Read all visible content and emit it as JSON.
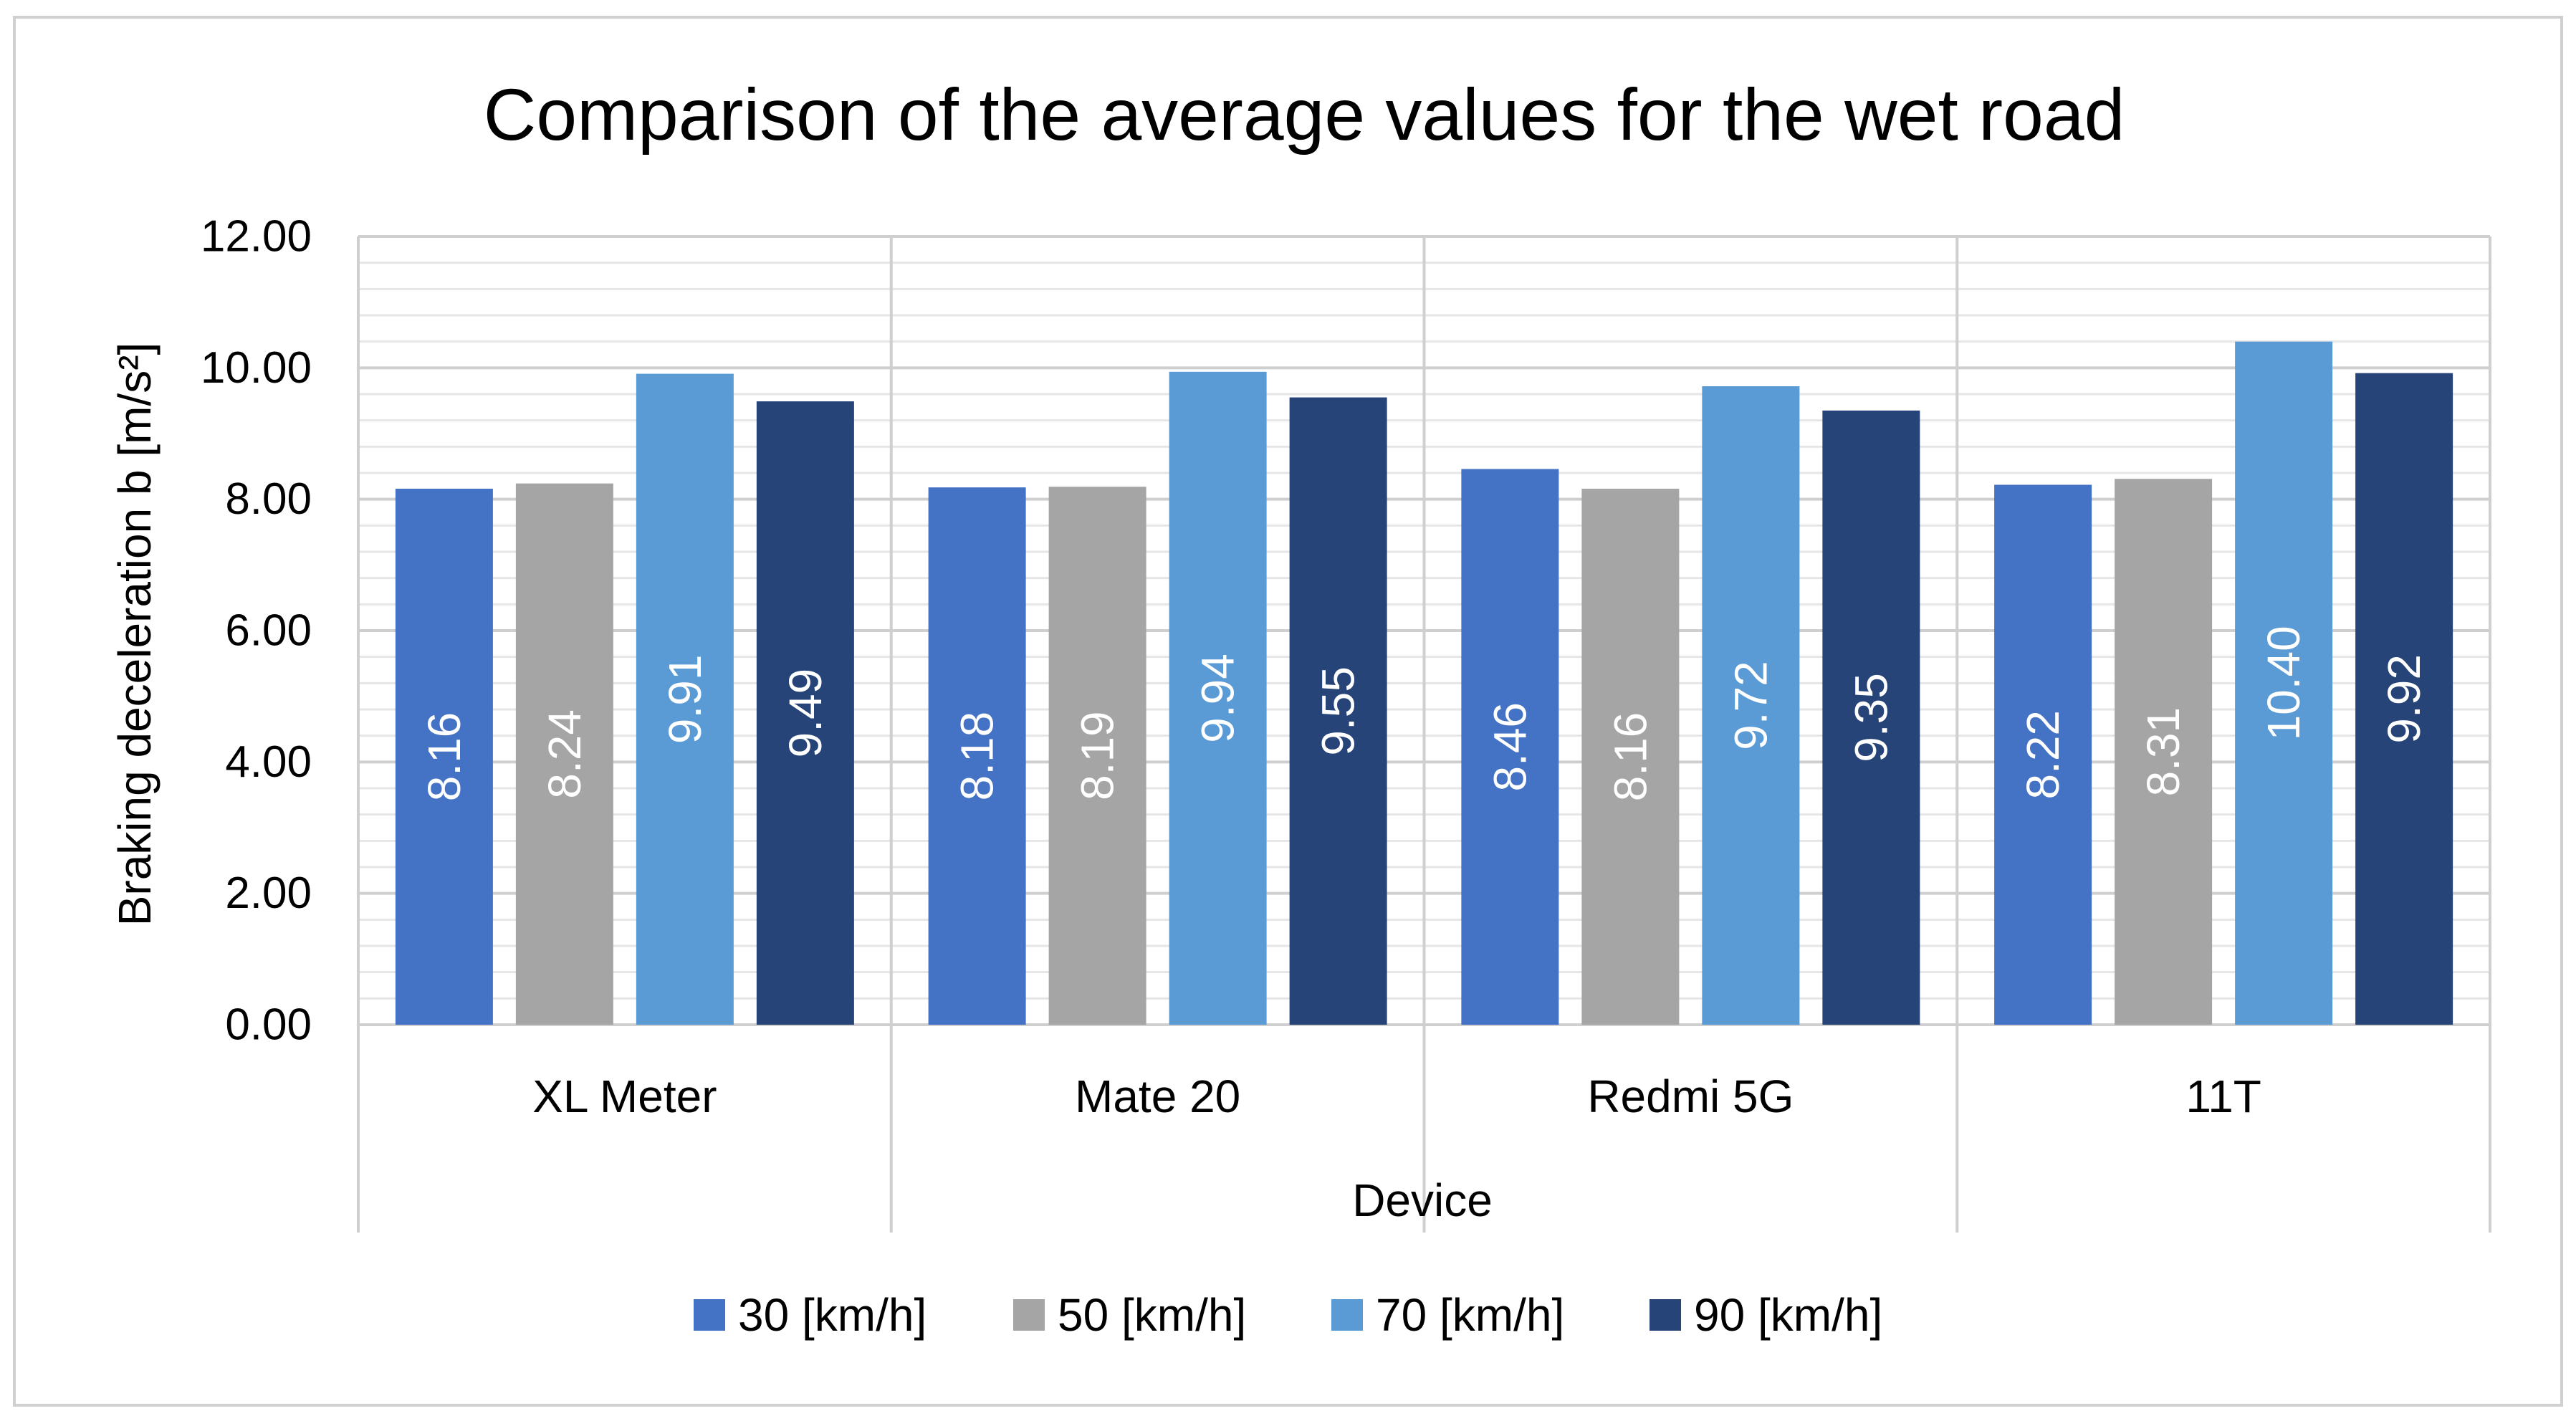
{
  "chart_data": {
    "type": "bar",
    "title": "Comparison of the average values for the wet road",
    "xlabel": "Device",
    "ylabel": "Braking deceleration b [m/s²]",
    "categories": [
      "XL Meter",
      "Mate 20",
      "Redmi 5G",
      "11T"
    ],
    "ylim": [
      0,
      12
    ],
    "yticks": [
      "0.00",
      "2.00",
      "4.00",
      "6.00",
      "8.00",
      "10.00",
      "12.00"
    ],
    "ytick_values": [
      0,
      2,
      4,
      6,
      8,
      10,
      12
    ],
    "grid": true,
    "legend_position": "bottom",
    "series": [
      {
        "name": "30 [km/h]",
        "color": "#4472c4",
        "values": [
          8.16,
          8.18,
          8.46,
          8.22
        ],
        "labels": [
          "8.16",
          "8.18",
          "8.46",
          "8.22"
        ]
      },
      {
        "name": "50 [km/h]",
        "color": "#a5a5a5",
        "values": [
          8.24,
          8.19,
          8.16,
          8.31
        ],
        "labels": [
          "8.24",
          "8.19",
          "8.16",
          "8.31"
        ]
      },
      {
        "name": "70 [km/h]",
        "color": "#5b9bd5",
        "values": [
          9.91,
          9.94,
          9.72,
          10.4
        ],
        "labels": [
          "9.91",
          "9.94",
          "9.72",
          "10.40"
        ]
      },
      {
        "name": "90 [km/h]",
        "color": "#264478",
        "values": [
          9.49,
          9.55,
          9.35,
          9.92
        ],
        "labels": [
          "9.49",
          "9.55",
          "9.35",
          "9.92"
        ]
      }
    ]
  }
}
